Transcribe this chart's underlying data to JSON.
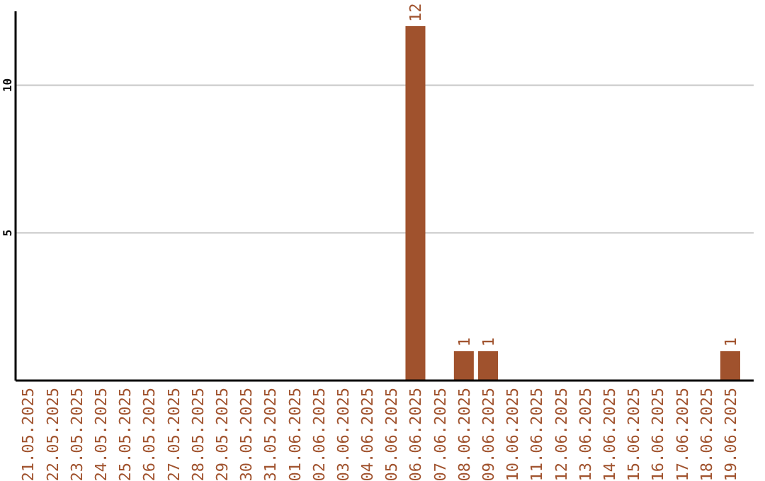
{
  "chart_data": {
    "type": "bar",
    "categories": [
      "21.05.2025",
      "22.05.2025",
      "23.05.2025",
      "24.05.2025",
      "25.05.2025",
      "26.05.2025",
      "27.05.2025",
      "28.05.2025",
      "29.05.2025",
      "30.05.2025",
      "31.05.2025",
      "01.06.2025",
      "02.06.2025",
      "03.06.2025",
      "04.06.2025",
      "05.06.2025",
      "06.06.2025",
      "07.06.2025",
      "08.06.2025",
      "09.06.2025",
      "10.06.2025",
      "11.06.2025",
      "12.06.2025",
      "13.06.2025",
      "14.06.2025",
      "15.06.2025",
      "16.06.2025",
      "17.06.2025",
      "18.06.2025",
      "19.06.2025"
    ],
    "values": [
      0,
      0,
      0,
      0,
      0,
      0,
      0,
      0,
      0,
      0,
      0,
      0,
      0,
      0,
      0,
      0,
      12,
      0,
      1,
      1,
      0,
      0,
      0,
      0,
      0,
      0,
      0,
      0,
      0,
      1
    ],
    "value_labels": [
      null,
      null,
      null,
      null,
      null,
      null,
      null,
      null,
      null,
      null,
      null,
      null,
      null,
      null,
      null,
      null,
      "12",
      null,
      "1",
      "1",
      null,
      null,
      null,
      null,
      null,
      null,
      null,
      null,
      null,
      "1"
    ],
    "color": "#a0522d",
    "ylim": [
      0,
      12.5
    ],
    "yticks": [
      5,
      10
    ],
    "grid": "y"
  }
}
